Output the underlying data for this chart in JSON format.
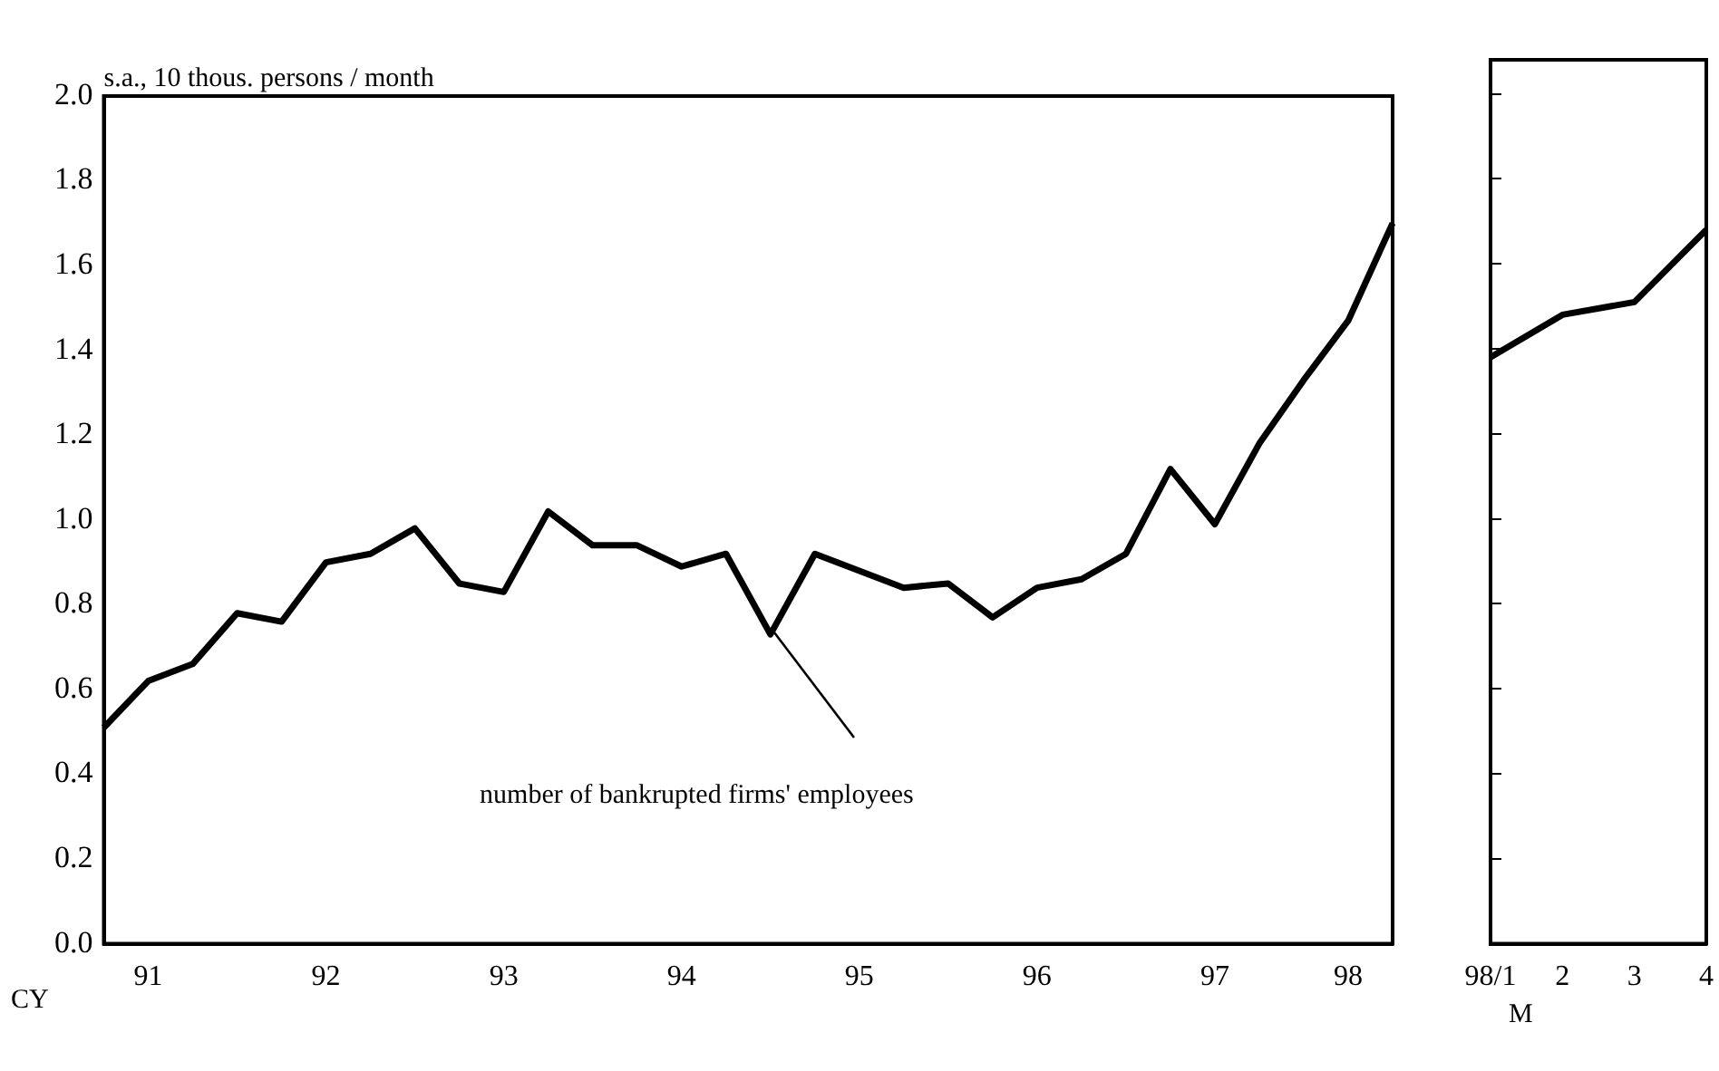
{
  "chart_data": [
    {
      "type": "line",
      "ylabel": "s.a., 10 thous. persons / month",
      "xlabel": "CY",
      "annotations": [
        "number of bankrupted firms' employees"
      ],
      "categories": [
        null,
        "91",
        null,
        null,
        null,
        "92",
        null,
        null,
        null,
        "93",
        null,
        null,
        null,
        "94",
        null,
        null,
        null,
        "95",
        null,
        null,
        null,
        "96",
        null,
        null,
        null,
        "97",
        null,
        null,
        "98",
        null
      ],
      "series": [
        {
          "color": "#000000",
          "values": [
            0.51,
            0.62,
            0.66,
            0.78,
            0.76,
            0.9,
            0.92,
            0.98,
            0.85,
            0.83,
            1.02,
            0.94,
            0.94,
            0.89,
            0.92,
            0.73,
            0.92,
            0.88,
            0.84,
            0.85,
            0.77,
            0.84,
            0.86,
            0.92,
            1.12,
            0.99,
            1.18,
            1.33,
            1.47,
            1.7
          ]
        }
      ],
      "ylim": [
        0,
        2
      ],
      "yticks": [
        {
          "value": 0,
          "label": "0.0"
        },
        {
          "value": 0.2,
          "label": "0.2"
        },
        {
          "value": 0.4,
          "label": "0.4"
        },
        {
          "value": 0.6,
          "label": "0.6"
        },
        {
          "value": 0.8,
          "label": "0.8"
        },
        {
          "value": 1,
          "label": "1.0"
        },
        {
          "value": 1.2,
          "label": "1.2"
        },
        {
          "value": 1.4,
          "label": "1.4"
        },
        {
          "value": 1.6,
          "label": "1.6"
        },
        {
          "value": 1.8,
          "label": "1.8"
        },
        {
          "value": 2,
          "label": "2.0"
        }
      ],
      "grid": false,
      "legend": false,
      "marker": "none",
      "line_style": "solid"
    },
    {
      "type": "line",
      "xlabel": "M",
      "categories": [
        "98/1",
        "2",
        "3",
        "4"
      ],
      "series": [
        {
          "color": "#000000",
          "values": [
            1.38,
            1.48,
            1.51,
            1.68
          ]
        }
      ],
      "ylim": [
        0,
        2.08
      ],
      "yticks": [
        0,
        0.2,
        0.4,
        0.6,
        0.8,
        1,
        1.2,
        1.4,
        1.6,
        1.8,
        2
      ],
      "tick_labels": "x",
      "grid": false,
      "legend": false,
      "marker": "none",
      "line_style": "solid"
    }
  ]
}
